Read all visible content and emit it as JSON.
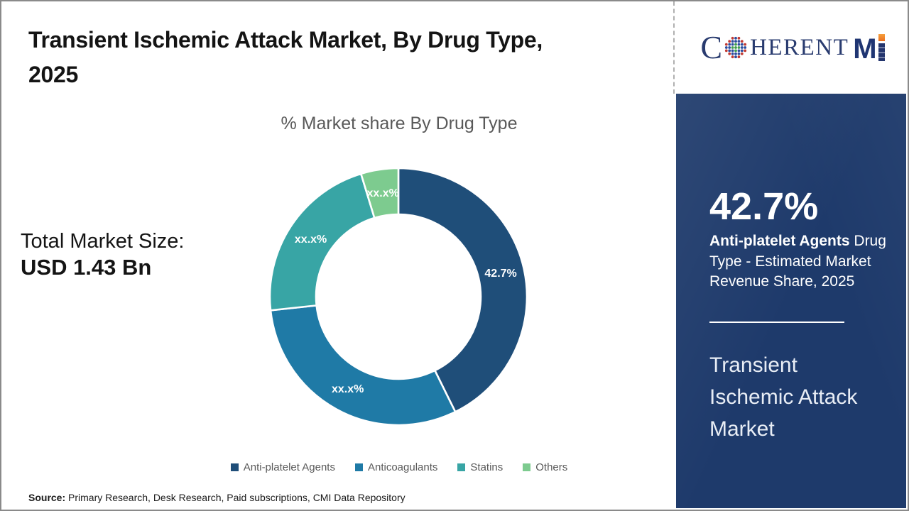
{
  "header": {
    "title_line1": "Transient Ischemic Attack Market, By Drug Type,",
    "title_line2": "2025",
    "logo": {
      "c_letter": "C",
      "herent": "HERENT",
      "m_letter": "M"
    }
  },
  "left_stat": {
    "label": "Total Market Size:",
    "value": "USD 1.43 Bn"
  },
  "chart_data": {
    "type": "pie",
    "subtype": "donut",
    "title": "% Market share By Drug Type",
    "categories": [
      "Anti-platelet Agents",
      "Anticoagulants",
      "Statins",
      "Others"
    ],
    "values": [
      42.7,
      30.6,
      22.0,
      4.7
    ],
    "display_labels": [
      "42.7%",
      "xx.x%",
      "xx.x%",
      "xx.x%"
    ],
    "colors": [
      "#1F4E79",
      "#1F7AA6",
      "#38A5A5",
      "#7DCB8F"
    ],
    "legend_position": "bottom",
    "inner_radius_ratio": 0.64,
    "start_angle_deg": 0,
    "direction": "clockwise"
  },
  "side_panel": {
    "highlight_value": "42.7%",
    "highlight_bold": "Anti-platelet Agents",
    "highlight_rest": " Drug Type - Estimated Market Revenue Share, 2025",
    "market_name": "Transient Ischemic Attack Market",
    "bg_color": "#1E3A6B"
  },
  "footer": {
    "source_label": "Source:",
    "source_text": " Primary Research, Desk Research, Paid subscriptions, CMI Data Repository"
  }
}
